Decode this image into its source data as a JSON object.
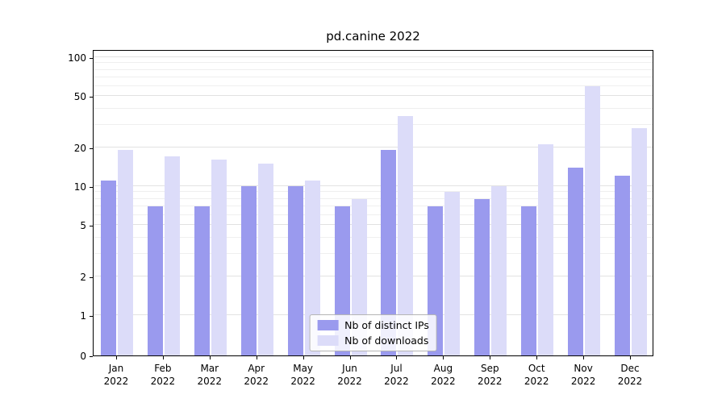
{
  "title": "pd.canine 2022",
  "colors": {
    "ips": "#9a9aee",
    "downloads": "#dcdcf9",
    "grid_major": "#e2e2e2",
    "grid_minor": "#efefef",
    "axis": "#000000"
  },
  "legend": {
    "items": [
      {
        "label": "Nb of distinct IPs",
        "series": "ips"
      },
      {
        "label": "Nb of downloads",
        "series": "downloads"
      }
    ],
    "position": "lower center"
  },
  "chart_data": {
    "type": "bar",
    "title": "pd.canine 2022",
    "categories": [
      "Jan",
      "Feb",
      "Mar",
      "Apr",
      "May",
      "Jun",
      "Jul",
      "Aug",
      "Sep",
      "Oct",
      "Nov",
      "Dec"
    ],
    "year": "2022",
    "series": [
      {
        "name": "Nb of distinct IPs",
        "color": "#9a9aee",
        "values": [
          11,
          7,
          7,
          10,
          10,
          7,
          19,
          7,
          8,
          7,
          14,
          12
        ]
      },
      {
        "name": "Nb of downloads",
        "color": "#dcdcf9",
        "values": [
          19,
          17,
          16,
          15,
          11,
          8,
          35,
          9,
          10,
          21,
          60,
          28
        ]
      }
    ],
    "yscale": "symlog",
    "ylim": [
      0,
      100
    ],
    "yticks": [
      0,
      1,
      2,
      5,
      10,
      20,
      50,
      100
    ],
    "minor_yticks": [
      3,
      4,
      6,
      7,
      8,
      9,
      30,
      40,
      60,
      70,
      80,
      90
    ],
    "grid": true,
    "legend_position": "lower center"
  }
}
